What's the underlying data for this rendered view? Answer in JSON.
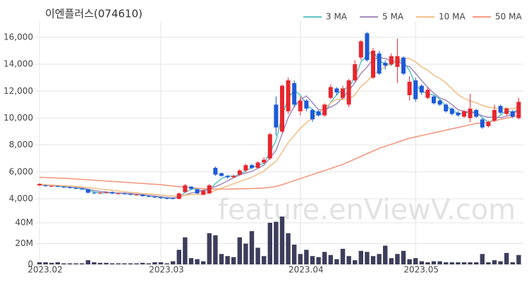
{
  "chart_data": [
    {
      "type": "candlestick",
      "title": "이엔플러스(074610)",
      "watermark": "feature.enViewV.com",
      "up_color": "#e8262e",
      "down_color": "#1d5ad8",
      "ylim": [
        3580,
        17200
      ],
      "yticks": [
        {
          "value": 4000,
          "label": "4,000"
        },
        {
          "value": 6000,
          "label": "6,000"
        },
        {
          "value": 8000,
          "label": "8,000"
        },
        {
          "value": 10000,
          "label": "10,000"
        },
        {
          "value": 12000,
          "label": "12,000"
        },
        {
          "value": 14000,
          "label": "14,000"
        },
        {
          "value": 16000,
          "label": "16,000"
        }
      ],
      "grid": true,
      "legend": "top-right",
      "open": [
        5000,
        5000,
        4950,
        4950,
        4900,
        4850,
        4800,
        4750,
        4700,
        4450,
        4400,
        4450,
        4500,
        4400,
        4400,
        4350,
        4300,
        4300,
        4200,
        4150,
        4100,
        4050,
        4050,
        4000,
        4500,
        4900,
        4700,
        4300,
        4400,
        6300,
        5900,
        5700,
        5600,
        5800,
        6100,
        6500,
        6300,
        6700,
        7000,
        11000,
        9000,
        10500,
        12600,
        10500,
        11300,
        10600,
        10500,
        10200,
        11500,
        12200,
        11500,
        11000,
        12800,
        14500,
        16300,
        13000,
        14800,
        14100,
        14000,
        13800,
        14500,
        11700,
        12800,
        12400,
        11500,
        11600,
        11300,
        11000,
        10700,
        10400,
        10100,
        10000,
        10600,
        9900,
        9400,
        9800,
        10900,
        10300,
        10500,
        10000
      ],
      "high": [
        5150,
        5050,
        5000,
        4980,
        4950,
        4900,
        4850,
        4800,
        4750,
        4500,
        4500,
        4550,
        4550,
        4450,
        4450,
        4400,
        4350,
        4350,
        4250,
        4200,
        4150,
        4100,
        4100,
        4450,
        5100,
        4950,
        4750,
        4700,
        5100,
        6400,
        5950,
        5750,
        5800,
        6200,
        6600,
        6600,
        6800,
        7100,
        8900,
        11600,
        12500,
        13000,
        12800,
        11600,
        11400,
        10700,
        10600,
        11100,
        12500,
        12300,
        12400,
        12900,
        14300,
        15800,
        16400,
        15200,
        15000,
        14300,
        14800,
        15900,
        14600,
        13100,
        13000,
        12500,
        12300,
        11700,
        11400,
        11100,
        10800,
        10500,
        10600,
        11800,
        10700,
        10000,
        9800,
        11000,
        11000,
        10800,
        10600,
        11500
      ],
      "low": [
        4950,
        4900,
        4900,
        4850,
        4800,
        4750,
        4700,
        4650,
        4400,
        4350,
        4350,
        4400,
        4350,
        4350,
        4300,
        4250,
        4250,
        4150,
        4100,
        4050,
        4000,
        3950,
        3950,
        3950,
        4450,
        4650,
        4350,
        4250,
        4350,
        5700,
        5650,
        5500,
        5550,
        5700,
        6000,
        6200,
        6250,
        6600,
        6900,
        8700,
        8900,
        10300,
        10800,
        10200,
        10500,
        9700,
        10100,
        10100,
        11400,
        11700,
        11400,
        10800,
        12700,
        14300,
        14200,
        12900,
        13200,
        13600,
        13900,
        12600,
        13200,
        11300,
        11200,
        11700,
        11400,
        11000,
        10900,
        10400,
        10200,
        10100,
        10000,
        9700,
        10000,
        9200,
        9300,
        9700,
        10300,
        10200,
        10000,
        9900
      ],
      "close": [
        5100,
        4950,
        4950,
        4900,
        4850,
        4800,
        4750,
        4700,
        4450,
        4400,
        4450,
        4500,
        4400,
        4400,
        4350,
        4300,
        4300,
        4200,
        4150,
        4100,
        4050,
        4000,
        4000,
        4400,
        5000,
        4750,
        4400,
        4600,
        5000,
        5800,
        5700,
        5600,
        5700,
        6100,
        6500,
        6300,
        6700,
        6900,
        8800,
        9300,
        12400,
        12800,
        11000,
        11300,
        10700,
        9900,
        10200,
        11000,
        12300,
        11900,
        12200,
        12800,
        14000,
        15700,
        14300,
        15000,
        13300,
        13900,
        14600,
        14600,
        13300,
        12700,
        11400,
        11900,
        12100,
        11100,
        11000,
        10500,
        10300,
        10200,
        10500,
        10700,
        10100,
        9300,
        9700,
        10600,
        10400,
        10700,
        10100,
        11200
      ],
      "series": [
        {
          "name": "3 MA",
          "color": "#5fc6c4",
          "values": [
            5050,
            5000,
            5000,
            4930,
            4900,
            4850,
            4800,
            4750,
            4630,
            4520,
            4430,
            4450,
            4450,
            4430,
            4380,
            4350,
            4320,
            4270,
            4220,
            4150,
            4100,
            4050,
            4020,
            4130,
            4470,
            4720,
            4720,
            4580,
            4670,
            5130,
            5500,
            5700,
            5670,
            5800,
            6100,
            6300,
            6500,
            6630,
            7470,
            8330,
            10170,
            11500,
            12070,
            11700,
            11000,
            10630,
            10270,
            10370,
            11170,
            11730,
            12130,
            12300,
            13000,
            14170,
            14670,
            15000,
            14200,
            14070,
            13930,
            14370,
            14170,
            13530,
            12470,
            12000,
            11800,
            11700,
            11400,
            10870,
            10600,
            10330,
            10330,
            10470,
            10430,
            10030,
            9700,
            9870,
            10230,
            10570,
            10400,
            10670
          ]
        },
        {
          "name": "5 MA",
          "color": "#a48fbf",
          "values": [
            5050,
            5000,
            5000,
            4970,
            4950,
            4890,
            4850,
            4800,
            4710,
            4620,
            4550,
            4500,
            4440,
            4430,
            4420,
            4390,
            4350,
            4310,
            4260,
            4210,
            4160,
            4100,
            4060,
            4110,
            4290,
            4430,
            4510,
            4630,
            4750,
            4910,
            5100,
            5340,
            5560,
            5780,
            5920,
            6040,
            6260,
            6500,
            7040,
            7600,
            8820,
            10040,
            10860,
            11360,
            11640,
            11140,
            10620,
            10620,
            10820,
            11060,
            11520,
            12040,
            12640,
            13320,
            13800,
            14360,
            14460,
            14440,
            14220,
            14280,
            13940,
            13820,
            13320,
            12780,
            12280,
            11840,
            11500,
            11320,
            11000,
            10620,
            10500,
            10440,
            10360,
            10160,
            10060,
            10080,
            10020,
            10140,
            10300,
            10600
          ]
        },
        {
          "name": "10 MA",
          "color": "#f2c18a",
          "values": [
            5100,
            5050,
            5030,
            5000,
            4980,
            4950,
            4920,
            4880,
            4830,
            4790,
            4720,
            4680,
            4630,
            4580,
            4530,
            4480,
            4440,
            4390,
            4360,
            4330,
            4290,
            4240,
            4200,
            4200,
            4270,
            4310,
            4320,
            4360,
            4450,
            4620,
            4790,
            4950,
            5120,
            5290,
            5440,
            5600,
            5830,
            6060,
            6440,
            6790,
            7460,
            8180,
            8710,
            9230,
            9650,
            10010,
            10360,
            10770,
            11120,
            11400,
            11380,
            11420,
            11720,
            12360,
            12720,
            13230,
            13540,
            13830,
            14060,
            14330,
            14440,
            14430,
            14170,
            13790,
            13570,
            13180,
            12950,
            12610,
            12180,
            11740,
            11460,
            11260,
            11130,
            10950,
            10810,
            10760,
            10700,
            10720,
            10700,
            10800
          ]
        },
        {
          "name": "50 MA",
          "color": "#f39a82",
          "values": [
            5600,
            5580,
            5560,
            5540,
            5520,
            5500,
            5470,
            5440,
            5410,
            5380,
            5350,
            5320,
            5290,
            5260,
            5230,
            5200,
            5170,
            5140,
            5110,
            5080,
            5050,
            5000,
            4950,
            4900,
            4860,
            4820,
            4780,
            4760,
            4740,
            4720,
            4720,
            4720,
            4730,
            4740,
            4750,
            4760,
            4780,
            4800,
            4850,
            4920,
            5050,
            5200,
            5350,
            5500,
            5650,
            5800,
            5950,
            6100,
            6250,
            6400,
            6550,
            6750,
            6950,
            7150,
            7350,
            7550,
            7750,
            7900,
            8050,
            8200,
            8350,
            8500,
            8600,
            8700,
            8800,
            8900,
            9000,
            9100,
            9200,
            9300,
            9400,
            9500,
            9600,
            9650,
            9700,
            9800,
            9900,
            10000,
            10100,
            10200
          ]
        }
      ]
    },
    {
      "type": "bar",
      "color": "#3d3d5c",
      "ylim": [
        0,
        49500000
      ],
      "yticks": [
        0,
        {
          "value": 20000000,
          "label": "20M"
        },
        {
          "value": 40000000,
          "label": "40M"
        }
      ],
      "grid": true,
      "categories": [
        "2023.02",
        null,
        null,
        null,
        null,
        null,
        null,
        null,
        null,
        null,
        null,
        null,
        null,
        null,
        null,
        null,
        null,
        null,
        null,
        null,
        "2023.03",
        null,
        null,
        null,
        null,
        null,
        null,
        null,
        null,
        null,
        null,
        null,
        null,
        null,
        null,
        null,
        null,
        null,
        null,
        null,
        null,
        null,
        null,
        "2023.04",
        null,
        null,
        null,
        null,
        null,
        null,
        null,
        null,
        null,
        null,
        null,
        null,
        null,
        null,
        null,
        null,
        null,
        null,
        "2023.05",
        null,
        null,
        null,
        null,
        null,
        null,
        null,
        null,
        null,
        null,
        null,
        null,
        null,
        null,
        null,
        null,
        null
      ],
      "values": [
        2000000,
        2000000,
        1500000,
        2000000,
        1000000,
        1000000,
        1000000,
        1000000,
        4000000,
        2000000,
        1500000,
        1500000,
        1000000,
        1000000,
        1000000,
        1000000,
        1000000,
        1500000,
        1000000,
        2000000,
        2000000,
        1000000,
        3000000,
        14000000,
        26000000,
        6000000,
        5000000,
        3000000,
        30000000,
        28000000,
        10000000,
        8000000,
        7000000,
        26000000,
        20000000,
        32000000,
        16000000,
        8000000,
        40000000,
        41000000,
        46000000,
        30000000,
        19000000,
        10000000,
        14000000,
        8000000,
        7000000,
        12000000,
        9000000,
        5000000,
        15000000,
        8000000,
        4000000,
        13000000,
        12000000,
        8000000,
        10000000,
        18000000,
        6000000,
        10000000,
        13000000,
        5000000,
        6000000,
        3000000,
        2000000,
        3000000,
        3000000,
        2000000,
        2000000,
        2000000,
        2000000,
        2000000,
        2000000,
        10000000,
        2000000,
        4000000,
        3000000,
        11000000,
        2000000,
        9000000
      ]
    }
  ]
}
